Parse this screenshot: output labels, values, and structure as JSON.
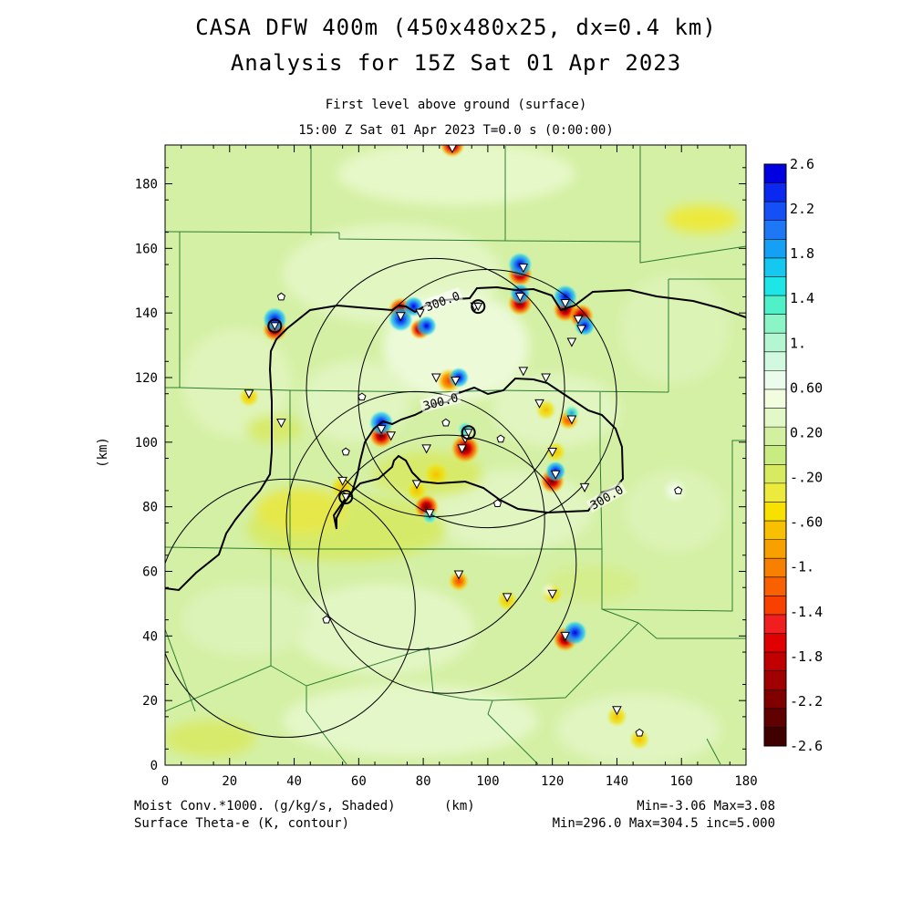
{
  "header": {
    "title_line1": "CASA DFW 400m (450x480x25, dx=0.4 km)",
    "title_line2": "Analysis for 15Z Sat 01 Apr 2023",
    "level_label": "First level above ground (surface)",
    "time_label": "15:00 Z Sat 01 Apr 2023    T=0.0 s (0:00:00)"
  },
  "axes": {
    "x_label": "(km)",
    "y_label": "(km)",
    "x_ticks": [
      "0",
      "20",
      "40",
      "60",
      "80",
      "100",
      "120",
      "140",
      "160",
      "180"
    ],
    "y_ticks": [
      "0",
      "20",
      "40",
      "60",
      "80",
      "100",
      "120",
      "140",
      "160",
      "180"
    ],
    "x_range": [
      0,
      180
    ],
    "y_range": [
      0,
      192
    ]
  },
  "colorbar": {
    "labels": [
      "2.6",
      "2.2",
      "1.8",
      "1.4",
      "1.",
      "0.60",
      "0.20",
      "-.20",
      "-.60",
      "-1.",
      "-1.4",
      "-1.8",
      "-2.2",
      "-2.6"
    ],
    "colors": [
      "#0000e0",
      "#0a28f0",
      "#1450f5",
      "#1e78f5",
      "#14a0f5",
      "#14c8f0",
      "#1ee6e6",
      "#50f0c8",
      "#8cf5c8",
      "#b4f5d2",
      "#d2f8e0",
      "#ecfcec",
      "#f2fde0",
      "#e2f8c8",
      "#d2f0a0",
      "#c8ec82",
      "#d8ea60",
      "#ecea3c",
      "#f8e000",
      "#f8c000",
      "#f8a000",
      "#f88000",
      "#f86000",
      "#f84000",
      "#f01e1e",
      "#e00000",
      "#c00000",
      "#a00000",
      "#800000",
      "#600000",
      "#400000"
    ]
  },
  "contours": {
    "labels": [
      "300.0",
      "300.0",
      "300.0"
    ]
  },
  "footer": {
    "left_line1": "Moist Conv.*1000. (g/kg/s, Shaded)",
    "left_unit": "(km)",
    "left_line2": "Surface Theta-e (K, contour)",
    "right_line1": "Min=-3.06 Max=3.08",
    "right_line2": "Min=296.0 Max=304.5 inc=5.000"
  },
  "radar_rings": [
    {
      "cx_km": 37.5,
      "cy_km": 48.6,
      "r_km": 40
    },
    {
      "cx_km": 77.6,
      "cy_km": 75.7,
      "r_km": 40
    },
    {
      "cx_km": 87.4,
      "cy_km": 62.2,
      "r_km": 40
    },
    {
      "cx_km": 99.9,
      "cy_km": 113.5,
      "r_km": 40
    },
    {
      "cx_km": 83.8,
      "cy_km": 116.9,
      "r_km": 40
    }
  ],
  "stations_triangle": [
    [
      89,
      191
    ],
    [
      96,
      142
    ],
    [
      73,
      139
    ],
    [
      111,
      154
    ],
    [
      110,
      145
    ],
    [
      124,
      143
    ],
    [
      128,
      138
    ],
    [
      129,
      135
    ],
    [
      126,
      131
    ],
    [
      111,
      122
    ],
    [
      118,
      120
    ],
    [
      116,
      112
    ],
    [
      126,
      107
    ],
    [
      84,
      120
    ],
    [
      90,
      119
    ],
    [
      26,
      115
    ],
    [
      36,
      106
    ],
    [
      67,
      104
    ],
    [
      70,
      102
    ],
    [
      93,
      101
    ],
    [
      92,
      98
    ],
    [
      81,
      98
    ],
    [
      120,
      97
    ],
    [
      121,
      90
    ],
    [
      55,
      88
    ],
    [
      78,
      87
    ],
    [
      130,
      86
    ],
    [
      82,
      78
    ],
    [
      91,
      59
    ],
    [
      106,
      52
    ],
    [
      120,
      53
    ],
    [
      124,
      40
    ],
    [
      140,
      17
    ],
    [
      79,
      140
    ]
  ],
  "stations_pentagon": [
    [
      36,
      145
    ],
    [
      61,
      114
    ],
    [
      87,
      106
    ],
    [
      104,
      101
    ],
    [
      56,
      97
    ],
    [
      103,
      81
    ],
    [
      159,
      85
    ],
    [
      50,
      45
    ],
    [
      147,
      10
    ]
  ],
  "stations_circled": [
    [
      34,
      136
    ],
    [
      56,
      83
    ],
    [
      94,
      103
    ],
    [
      97,
      142
    ]
  ],
  "anomalies": [
    {
      "x": 89,
      "y": 192,
      "v": -2.4,
      "r": 3
    },
    {
      "x": 110,
      "y": 152,
      "v": -2.2,
      "r": 3
    },
    {
      "x": 110,
      "y": 155,
      "v": 2.4,
      "r": 3
    },
    {
      "x": 110,
      "y": 143,
      "v": -2.3,
      "r": 3
    },
    {
      "x": 110,
      "y": 146,
      "v": 2.0,
      "r": 2.5
    },
    {
      "x": 124,
      "y": 141,
      "v": -2.2,
      "r": 3
    },
    {
      "x": 124,
      "y": 145,
      "v": 2.2,
      "r": 3
    },
    {
      "x": 129,
      "y": 139,
      "v": -2.5,
      "r": 3
    },
    {
      "x": 130,
      "y": 136,
      "v": 2.4,
      "r": 2.5
    },
    {
      "x": 73,
      "y": 141,
      "v": -2.5,
      "r": 3
    },
    {
      "x": 73,
      "y": 138,
      "v": 2.4,
      "r": 3
    },
    {
      "x": 77,
      "y": 142,
      "v": 1.8,
      "r": 2.5
    },
    {
      "x": 79,
      "y": 135,
      "v": -2.0,
      "r": 2.5
    },
    {
      "x": 81,
      "y": 136,
      "v": 2.2,
      "r": 2.5
    },
    {
      "x": 34,
      "y": 135,
      "v": -2.5,
      "r": 3
    },
    {
      "x": 34,
      "y": 138,
      "v": 2.2,
      "r": 3
    },
    {
      "x": 88,
      "y": 119,
      "v": -1.4,
      "r": 3
    },
    {
      "x": 91,
      "y": 120,
      "v": 1.8,
      "r": 2.5
    },
    {
      "x": 26,
      "y": 114,
      "v": -1.0,
      "r": 2.5
    },
    {
      "x": 67,
      "y": 102,
      "v": -2.4,
      "r": 3
    },
    {
      "x": 67,
      "y": 106,
      "v": 2.0,
      "r": 3
    },
    {
      "x": 93,
      "y": 98,
      "v": -2.6,
      "r": 3.5
    },
    {
      "x": 93,
      "y": 104,
      "v": 0.8,
      "r": 2
    },
    {
      "x": 118,
      "y": 110,
      "v": -1.0,
      "r": 2.5
    },
    {
      "x": 125,
      "y": 107,
      "v": -1.4,
      "r": 2.5
    },
    {
      "x": 126,
      "y": 109,
      "v": 1.4,
      "r": 2
    },
    {
      "x": 120,
      "y": 88,
      "v": -2.2,
      "r": 3
    },
    {
      "x": 121,
      "y": 91,
      "v": 1.6,
      "r": 2.5
    },
    {
      "x": 121,
      "y": 97,
      "v": -0.8,
      "r": 2.5
    },
    {
      "x": 84,
      "y": 90,
      "v": -1.0,
      "r": 3
    },
    {
      "x": 81,
      "y": 80,
      "v": -2.2,
      "r": 3
    },
    {
      "x": 82,
      "y": 77,
      "v": 1.0,
      "r": 2
    },
    {
      "x": 78,
      "y": 85,
      "v": -1.0,
      "r": 2.5
    },
    {
      "x": 55,
      "y": 86,
      "v": -1.0,
      "r": 3
    },
    {
      "x": 91,
      "y": 57,
      "v": -1.2,
      "r": 2.5
    },
    {
      "x": 106,
      "y": 51,
      "v": -1.0,
      "r": 2.5
    },
    {
      "x": 120,
      "y": 53,
      "v": -0.8,
      "r": 2.5
    },
    {
      "x": 119,
      "y": 54,
      "v": 0.6,
      "r": 2
    },
    {
      "x": 124,
      "y": 39,
      "v": -2.3,
      "r": 3
    },
    {
      "x": 127,
      "y": 41,
      "v": 2.2,
      "r": 3
    },
    {
      "x": 140,
      "y": 15,
      "v": -0.8,
      "r": 2.5
    },
    {
      "x": 147,
      "y": 8,
      "v": -1.0,
      "r": 2.5
    },
    {
      "x": 158,
      "y": 85,
      "v": 0.4,
      "r": 3
    }
  ]
}
